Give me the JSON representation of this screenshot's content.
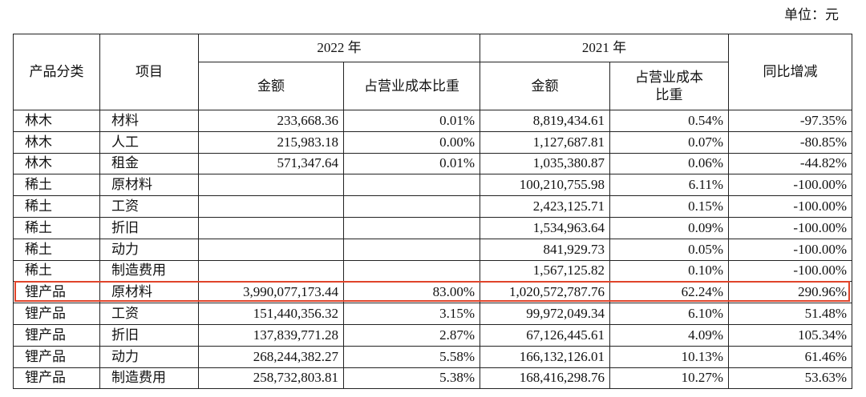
{
  "unit": "单位：元",
  "header": {
    "category": "产品分类",
    "item": "项目",
    "year_2022": "2022 年",
    "year_2021": "2021 年",
    "change": "同比增减",
    "amount_2022": "金额",
    "ratio_2022": "占营业成本比重",
    "amount_2021": "金额",
    "ratio_2021": "占营业成本比重"
  },
  "table": {
    "rows": [
      [
        "林木",
        "材料",
        "233,668.36",
        "0.01%",
        "8,819,434.61",
        "0.54%",
        "-97.35%"
      ],
      [
        "林木",
        "人工",
        "215,983.18",
        "0.00%",
        "1,127,687.81",
        "0.07%",
        "-80.85%"
      ],
      [
        "林木",
        "租金",
        "571,347.64",
        "0.01%",
        "1,035,380.87",
        "0.06%",
        "-44.82%"
      ],
      [
        "稀土",
        "原材料",
        null,
        null,
        "100,210,755.98",
        "6.11%",
        "-100.00%"
      ],
      [
        "稀土",
        "工资",
        null,
        null,
        "2,423,125.71",
        "0.15%",
        "-100.00%"
      ],
      [
        "稀土",
        "折旧",
        null,
        null,
        "1,534,963.64",
        "0.09%",
        "-100.00%"
      ],
      [
        "稀土",
        "动力",
        null,
        null,
        "841,929.73",
        "0.05%",
        "-100.00%"
      ],
      [
        "稀土",
        "制造费用",
        null,
        null,
        "1,567,125.82",
        "0.10%",
        "-100.00%"
      ],
      [
        "锂产品",
        "原材料",
        "3,990,077,173.44",
        "83.00%",
        "1,020,572,787.76",
        "62.24%",
        "290.96%"
      ],
      [
        "锂产品",
        "工资",
        "151,440,356.32",
        "3.15%",
        "99,972,049.34",
        "6.10%",
        "51.48%"
      ],
      [
        "锂产品",
        "折旧",
        "137,839,771.28",
        "2.87%",
        "67,126,445.61",
        "4.09%",
        "105.34%"
      ],
      [
        "锂产品",
        "动力",
        "268,244,382.27",
        "5.58%",
        "166,132,126.01",
        "10.13%",
        "61.46%"
      ],
      [
        "锂产品",
        "制造费用",
        "258,732,803.81",
        "5.38%",
        "168,416,298.76",
        "10.27%",
        "53.63%"
      ]
    ]
  }
}
